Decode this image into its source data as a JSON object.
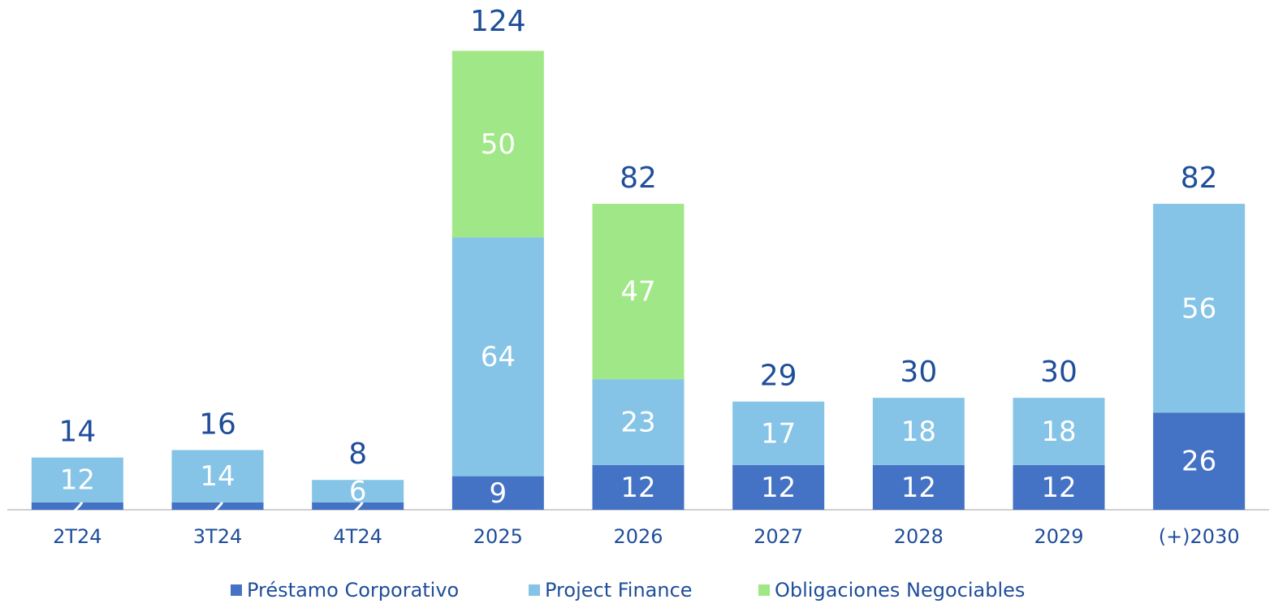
{
  "chart_data": {
    "type": "stacked_bar",
    "categories": [
      "2T24",
      "3T24",
      "4T24",
      "2025",
      "2026",
      "2027",
      "2028",
      "2029",
      "(+)2030"
    ],
    "series": [
      {
        "name": "Préstamo Corporativo",
        "color": "#4472c4",
        "values": [
          2,
          2,
          2,
          9,
          12,
          12,
          12,
          12,
          26
        ]
      },
      {
        "name": "Project Finance",
        "color": "#85c4e6",
        "values": [
          12,
          14,
          6,
          64,
          23,
          17,
          18,
          18,
          56
        ]
      },
      {
        "name": "Obligaciones Negociables",
        "color": "#a0e887",
        "values": [
          null,
          null,
          null,
          50,
          47,
          null,
          null,
          null,
          null
        ]
      }
    ],
    "totals": [
      14,
      16,
      8,
      124,
      82,
      29,
      30,
      30,
      82
    ],
    "legend": "bottom"
  }
}
